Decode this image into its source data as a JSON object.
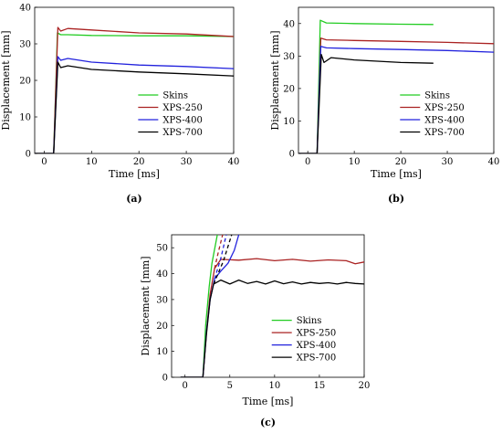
{
  "colors": {
    "Skins": "#22cc22",
    "XPS-250": "#aa2222",
    "XPS-400": "#2222dd",
    "XPS-700": "#000000"
  },
  "chart_data": [
    {
      "panel": "(a)",
      "type": "line",
      "xlabel": "Time [ms]",
      "ylabel": "Displacement [mm]",
      "xlim": [
        -2,
        40
      ],
      "ylim": [
        0,
        40
      ],
      "xticks": [
        0,
        10,
        20,
        30,
        40
      ],
      "yticks": [
        0,
        10,
        20,
        30,
        40
      ],
      "legend_position": "bottom-right",
      "series": [
        {
          "name": "Skins",
          "x": [
            -2,
            2,
            2.8,
            3.5,
            5,
            10,
            20,
            30,
            40
          ],
          "y": [
            0,
            0,
            33,
            32.5,
            32.5,
            32.3,
            32.2,
            32.2,
            32.0
          ]
        },
        {
          "name": "XPS-250",
          "x": [
            -2,
            2,
            2.9,
            3.5,
            5,
            10,
            20,
            30,
            40
          ],
          "y": [
            0,
            0,
            34.5,
            33.5,
            34.2,
            33.8,
            33.0,
            32.7,
            32.0
          ]
        },
        {
          "name": "XPS-400",
          "x": [
            -2,
            2,
            2.9,
            3.5,
            5,
            10,
            20,
            30,
            40
          ],
          "y": [
            0,
            0,
            26.5,
            25.5,
            26.0,
            25.0,
            24.2,
            23.8,
            23.2
          ]
        },
        {
          "name": "XPS-700",
          "x": [
            -2,
            2,
            2.9,
            3.5,
            5,
            10,
            20,
            30,
            40
          ],
          "y": [
            0,
            0,
            25.0,
            23.5,
            24.0,
            23.0,
            22.3,
            21.8,
            21.2
          ]
        }
      ]
    },
    {
      "panel": "(b)",
      "type": "line",
      "xlabel": "Time [ms]",
      "ylabel": "Displacement [mm]",
      "xlim": [
        -2,
        40
      ],
      "ylim": [
        0,
        45
      ],
      "xticks": [
        0,
        10,
        20,
        30,
        40
      ],
      "yticks": [
        0,
        10,
        20,
        30,
        40
      ],
      "legend_position": "bottom-right",
      "series": [
        {
          "name": "Skins",
          "x": [
            -2,
            2,
            2.7,
            4,
            10,
            20,
            27
          ],
          "y": [
            0,
            0,
            41,
            40.2,
            40.0,
            39.8,
            39.7
          ]
        },
        {
          "name": "XPS-250",
          "x": [
            -2,
            2,
            2.8,
            4,
            10,
            20,
            30,
            40
          ],
          "y": [
            0,
            0,
            35.5,
            35.0,
            34.8,
            34.5,
            34.2,
            33.8
          ]
        },
        {
          "name": "XPS-400",
          "x": [
            -2,
            2,
            2.8,
            4,
            10,
            20,
            30,
            40
          ],
          "y": [
            0,
            0,
            33.0,
            32.5,
            32.3,
            32.0,
            31.7,
            31.2
          ]
        },
        {
          "name": "XPS-700",
          "x": [
            -2,
            2,
            2.9,
            3.5,
            5,
            10,
            20,
            27
          ],
          "y": [
            0,
            0,
            30.5,
            28.0,
            29.5,
            28.8,
            28.0,
            27.8
          ]
        }
      ]
    },
    {
      "panel": "(c)",
      "type": "line",
      "xlabel": "Time [ms]",
      "ylabel": "Displacement [mm]",
      "xlim": [
        -1.5,
        20
      ],
      "ylim": [
        0,
        55
      ],
      "xticks": [
        0,
        5,
        10,
        15,
        20
      ],
      "yticks": [
        0,
        10,
        20,
        30,
        40,
        50
      ],
      "legend_position": "bottom-right",
      "series": [
        {
          "name": "Skins",
          "x": [
            -0.5,
            2,
            2.3,
            2.7,
            3.0,
            3.6
          ],
          "y": [
            0,
            0,
            20,
            35,
            44,
            55
          ]
        },
        {
          "name": "XPS-250",
          "x": [
            -0.5,
            2,
            2.4,
            2.8,
            3.3,
            4,
            6,
            8,
            10,
            12,
            14,
            16,
            18,
            19,
            20
          ],
          "y": [
            0,
            0,
            18,
            32,
            42,
            45.5,
            45.2,
            45.8,
            45.0,
            45.5,
            44.8,
            45.3,
            45.0,
            43.8,
            44.5
          ]
        },
        {
          "name": "XPS-400",
          "x": [
            -0.5,
            2,
            2.4,
            2.8,
            3.3,
            4,
            4.8,
            5.5,
            6
          ],
          "y": [
            0,
            0,
            18,
            30,
            38,
            41,
            44,
            49,
            55
          ]
        },
        {
          "name": "XPS-700",
          "x": [
            -0.5,
            2,
            2.4,
            2.8,
            3.2,
            4,
            5,
            6,
            7,
            8,
            9,
            10,
            11,
            12,
            13,
            14,
            15,
            16,
            17,
            18,
            19,
            20
          ],
          "y": [
            0,
            0,
            17,
            30,
            36,
            37.5,
            36.0,
            37.5,
            36.2,
            37.0,
            36.0,
            37.2,
            36.1,
            36.8,
            36.0,
            36.6,
            36.2,
            36.5,
            36.0,
            36.6,
            36.2,
            36.0
          ]
        }
      ],
      "dashed_extensions": [
        {
          "series": "XPS-250",
          "x": [
            3.3,
            3.7,
            4.2
          ],
          "y": [
            42,
            48,
            55
          ]
        },
        {
          "series": "XPS-400",
          "x": [
            3.3,
            4.0,
            4.6
          ],
          "y": [
            38,
            46,
            55
          ]
        },
        {
          "series": "XPS-700",
          "x": [
            3.2,
            4.3,
            5.2
          ],
          "y": [
            36,
            45,
            55
          ]
        }
      ]
    }
  ]
}
